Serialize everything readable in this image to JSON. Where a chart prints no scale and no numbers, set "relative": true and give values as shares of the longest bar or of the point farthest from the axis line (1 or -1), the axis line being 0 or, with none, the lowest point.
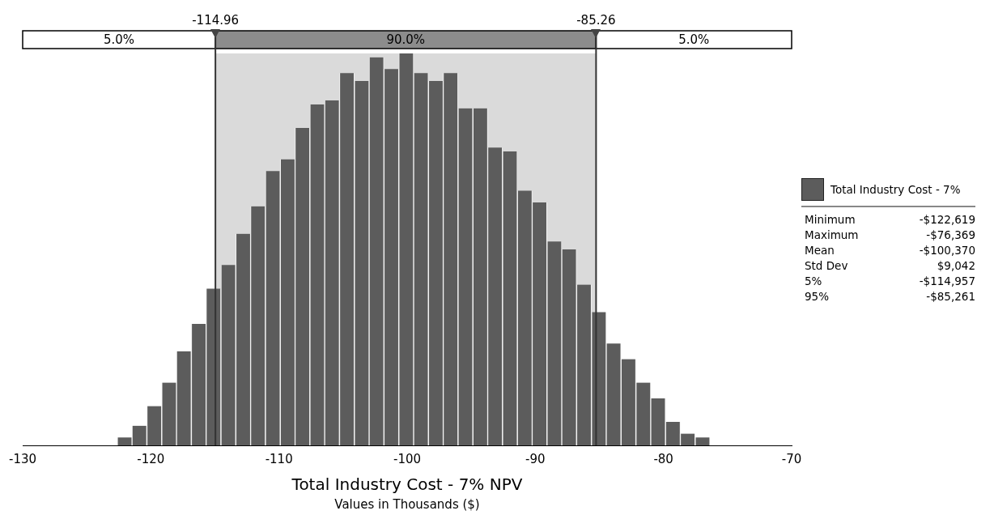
{
  "chart_data": {
    "type": "bar",
    "relative": true,
    "xlabel": "Total Industry Cost - 7% NPV",
    "subtitle": "Values in Thousands ($)",
    "x": [
      -122.04,
      -120.89,
      -119.73,
      -118.57,
      -117.42,
      -116.26,
      -115.11,
      -113.95,
      -112.79,
      -111.64,
      -110.48,
      -109.32,
      -108.17,
      -107.01,
      -105.86,
      -104.7,
      -103.54,
      -102.39,
      -101.23,
      -100.07,
      -98.92,
      -97.76,
      -96.61,
      -95.45,
      -94.29,
      -93.14,
      -91.98,
      -90.82,
      -89.67,
      -88.51,
      -87.36,
      -86.2,
      -85.04,
      -83.89,
      -82.73,
      -81.57,
      -80.42,
      -79.26,
      -78.11,
      -76.95
    ],
    "series": [
      {
        "name": "Total Industry Cost - 7%",
        "color": "#5c5c5c",
        "values": [
          0.02,
          0.05,
          0.1,
          0.16,
          0.24,
          0.31,
          0.4,
          0.46,
          0.54,
          0.61,
          0.7,
          0.73,
          0.81,
          0.87,
          0.88,
          0.95,
          0.93,
          0.99,
          0.96,
          1,
          0.95,
          0.93,
          0.95,
          0.86,
          0.86,
          0.76,
          0.75,
          0.65,
          0.62,
          0.52,
          0.5,
          0.41,
          0.34,
          0.26,
          0.22,
          0.16,
          0.12,
          0.06,
          0.03,
          0.02
        ]
      }
    ],
    "xlim": [
      -130,
      -70
    ],
    "xticks": [
      {
        "value": -130,
        "label": "-130"
      },
      {
        "value": -120,
        "label": "-120"
      },
      {
        "value": -110,
        "label": "-110"
      },
      {
        "value": -100,
        "label": "-100"
      },
      {
        "value": -90,
        "label": "-90"
      },
      {
        "value": -80,
        "label": "-80"
      },
      {
        "value": -70,
        "label": "-70"
      }
    ],
    "ref_lines": [
      {
        "axis": "x",
        "value": -114.96,
        "label": "-114.96"
      },
      {
        "axis": "x",
        "value": -85.26,
        "label": "-85.26"
      }
    ],
    "bands": [
      {
        "axis": "x",
        "from": -130,
        "to": -114.96,
        "label": "5.0%",
        "color": "#ffffff"
      },
      {
        "axis": "x",
        "from": -114.96,
        "to": -85.26,
        "label": "90.0%",
        "color": "#8c8c8c"
      },
      {
        "axis": "x",
        "from": -85.26,
        "to": -70,
        "label": "5.0%",
        "color": "#ffffff"
      }
    ],
    "annotations": [
      "Minimum",
      "-$122,619",
      "Maximum",
      "-$76,369",
      "Mean",
      "-$100,370",
      "Std Dev",
      "$9,042",
      "5%",
      "-$114,957",
      "95%",
      "-$85,261"
    ],
    "legend": "right",
    "grid": false
  }
}
